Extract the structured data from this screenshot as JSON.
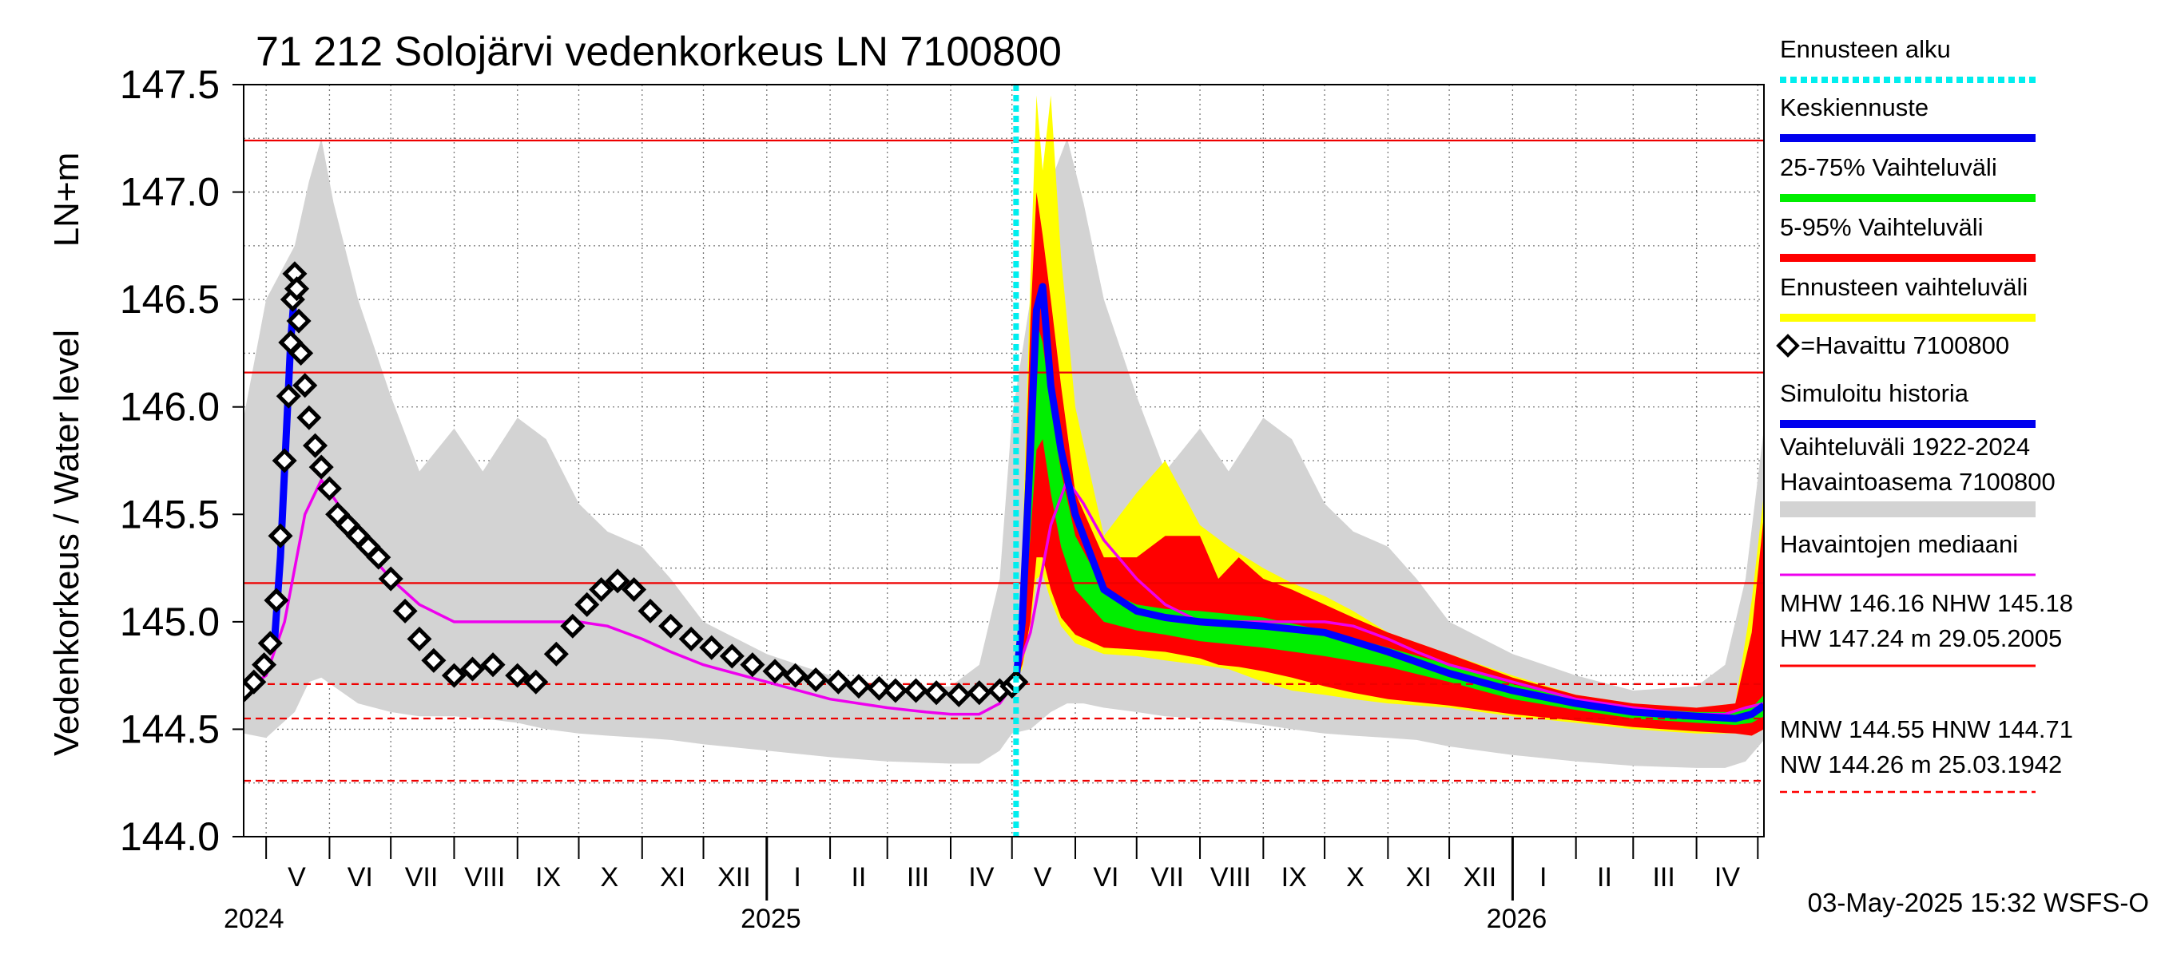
{
  "chart_data": {
    "type": "line",
    "title": "71 212 Solojärvi vedenkorkeus LN 7100800",
    "ylabel_top": "LN+m",
    "ylabel": "Vedenkorkeus / Water level",
    "ylim": [
      144.0,
      147.5
    ],
    "yticks": [
      "147.5",
      "147.0",
      "146.5",
      "146.0",
      "145.5",
      "145.0",
      "144.5",
      "144.0"
    ],
    "xlim": [
      "2024-04-20",
      "2026-05-04"
    ],
    "month_labels": [
      {
        "label": "V",
        "date": "2024-05-16"
      },
      {
        "label": "VI",
        "date": "2024-06-16"
      },
      {
        "label": "VII",
        "date": "2024-07-16"
      },
      {
        "label": "VIII",
        "date": "2024-08-16"
      },
      {
        "label": "IX",
        "date": "2024-09-16"
      },
      {
        "label": "X",
        "date": "2024-10-16"
      },
      {
        "label": "XI",
        "date": "2024-11-16"
      },
      {
        "label": "XII",
        "date": "2024-12-16"
      },
      {
        "label": "I",
        "date": "2025-01-16"
      },
      {
        "label": "II",
        "date": "2025-02-15"
      },
      {
        "label": "III",
        "date": "2025-03-16"
      },
      {
        "label": "IV",
        "date": "2025-04-16"
      },
      {
        "label": "V",
        "date": "2025-05-16"
      },
      {
        "label": "VI",
        "date": "2025-06-16"
      },
      {
        "label": "VII",
        "date": "2025-07-16"
      },
      {
        "label": "VIII",
        "date": "2025-08-16"
      },
      {
        "label": "IX",
        "date": "2025-09-16"
      },
      {
        "label": "X",
        "date": "2025-10-16"
      },
      {
        "label": "XI",
        "date": "2025-11-16"
      },
      {
        "label": "XII",
        "date": "2025-12-16"
      },
      {
        "label": "I",
        "date": "2026-01-16"
      },
      {
        "label": "II",
        "date": "2026-02-15"
      },
      {
        "label": "III",
        "date": "2026-03-16"
      },
      {
        "label": "IV",
        "date": "2026-04-16"
      }
    ],
    "year_labels": [
      {
        "label": "2024",
        "date": "2024-04-25"
      },
      {
        "label": "2025",
        "date": "2025-01-03"
      },
      {
        "label": "2026",
        "date": "2026-01-03"
      }
    ],
    "year_boundaries": [
      "2025-01-01",
      "2026-01-01"
    ],
    "forecast_start": "2025-05-03",
    "reference_lines": [
      {
        "name": "HW",
        "value": 147.24,
        "style": "solid"
      },
      {
        "name": "MHW",
        "value": 146.16,
        "style": "solid"
      },
      {
        "name": "NHW",
        "value": 145.18,
        "style": "solid"
      },
      {
        "name": "HNW",
        "value": 144.71,
        "style": "dashed"
      },
      {
        "name": "MNW",
        "value": 144.55,
        "style": "dashed"
      },
      {
        "name": "NW",
        "value": 144.26,
        "style": "dashed"
      }
    ],
    "series": [
      {
        "name": "Vaihteluväli 1922-2024 Havaintoasema 7100800",
        "kind": "band",
        "color": "#d3d3d3",
        "x": [
          "2024-04-20",
          "2024-05-01",
          "2024-05-15",
          "2024-05-22",
          "2024-05-28",
          "2024-06-03",
          "2024-06-15",
          "2024-07-01",
          "2024-07-15",
          "2024-08-01",
          "2024-08-15",
          "2024-09-01",
          "2024-09-15",
          "2024-10-01",
          "2024-10-15",
          "2024-11-01",
          "2024-11-15",
          "2024-12-01",
          "2025-01-01",
          "2025-02-01",
          "2025-03-01",
          "2025-04-01",
          "2025-04-15",
          "2025-04-25",
          "2025-05-01",
          "2025-05-10",
          "2025-05-20",
          "2025-05-28",
          "2025-06-05",
          "2025-06-15",
          "2025-07-01",
          "2025-07-15",
          "2025-08-01",
          "2025-08-15",
          "2025-09-01",
          "2025-09-15",
          "2025-10-01",
          "2025-10-15",
          "2025-11-01",
          "2025-11-15",
          "2025-12-01",
          "2026-01-01",
          "2026-02-01",
          "2026-03-01",
          "2026-04-01",
          "2026-04-15",
          "2026-04-25",
          "2026-05-04"
        ],
        "upper": [
          145.95,
          146.5,
          146.75,
          147.05,
          147.25,
          146.95,
          146.5,
          146.05,
          145.7,
          145.9,
          145.7,
          145.95,
          145.85,
          145.55,
          145.42,
          145.35,
          145.2,
          145.0,
          144.85,
          144.75,
          144.68,
          144.7,
          144.8,
          145.2,
          145.95,
          146.5,
          147.05,
          147.25,
          146.95,
          146.5,
          146.05,
          145.7,
          145.9,
          145.7,
          145.95,
          145.85,
          145.55,
          145.42,
          145.35,
          145.2,
          145.0,
          144.85,
          144.75,
          144.68,
          144.7,
          144.8,
          145.2,
          145.9
        ],
        "lower": [
          144.48,
          144.46,
          144.58,
          144.72,
          144.74,
          144.7,
          144.62,
          144.58,
          144.56,
          144.56,
          144.55,
          144.53,
          144.5,
          144.48,
          144.47,
          144.46,
          144.45,
          144.43,
          144.4,
          144.37,
          144.35,
          144.34,
          144.34,
          144.4,
          144.48,
          144.5,
          144.58,
          144.62,
          144.62,
          144.6,
          144.58,
          144.56,
          144.55,
          144.54,
          144.52,
          144.5,
          144.48,
          144.47,
          144.46,
          144.45,
          144.42,
          144.38,
          144.35,
          144.33,
          144.32,
          144.32,
          144.35,
          144.45
        ]
      },
      {
        "name": "Ennusteen vaihteluväli",
        "kind": "band",
        "color": "#ffff00",
        "x": [
          "2025-05-03",
          "2025-05-06",
          "2025-05-10",
          "2025-05-13",
          "2025-05-16",
          "2025-05-20",
          "2025-05-25",
          "2025-06-01",
          "2025-06-15",
          "2025-07-01",
          "2025-07-15",
          "2025-08-01",
          "2025-08-15",
          "2025-09-01",
          "2025-09-15",
          "2025-10-01",
          "2025-10-15",
          "2025-11-01",
          "2025-12-01",
          "2026-01-01",
          "2026-02-01",
          "2026-03-01",
          "2026-04-01",
          "2026-04-20",
          "2026-04-28",
          "2026-05-04"
        ],
        "upper": [
          144.75,
          145.3,
          146.6,
          147.45,
          147.1,
          147.45,
          146.7,
          146.0,
          145.4,
          145.6,
          145.75,
          145.45,
          145.35,
          145.25,
          145.18,
          145.12,
          145.05,
          144.95,
          144.85,
          144.75,
          144.66,
          144.62,
          144.6,
          144.62,
          145.1,
          145.6
        ],
        "lower": [
          144.72,
          144.78,
          144.98,
          145.2,
          145.22,
          145.1,
          144.98,
          144.9,
          144.85,
          144.84,
          144.82,
          144.8,
          144.78,
          144.72,
          144.68,
          144.66,
          144.64,
          144.62,
          144.6,
          144.56,
          144.53,
          144.5,
          144.48,
          144.48,
          144.47,
          144.5
        ]
      },
      {
        "name": "5-95% Vaihteluväli",
        "kind": "band",
        "color": "#ff0000",
        "x": [
          "2025-05-03",
          "2025-05-06",
          "2025-05-10",
          "2025-05-13",
          "2025-05-16",
          "2025-05-20",
          "2025-05-25",
          "2025-06-01",
          "2025-06-15",
          "2025-07-01",
          "2025-07-15",
          "2025-08-01",
          "2025-08-10",
          "2025-08-20",
          "2025-09-01",
          "2025-09-15",
          "2025-10-01",
          "2025-10-15",
          "2025-11-01",
          "2025-12-01",
          "2026-01-01",
          "2026-02-01",
          "2026-03-01",
          "2026-04-01",
          "2026-04-20",
          "2026-04-28",
          "2026-05-04"
        ],
        "upper": [
          144.75,
          145.2,
          146.4,
          147.0,
          146.8,
          146.5,
          146.1,
          145.6,
          145.3,
          145.3,
          145.4,
          145.4,
          145.2,
          145.3,
          145.2,
          145.15,
          145.08,
          145.02,
          144.95,
          144.85,
          144.74,
          144.66,
          144.62,
          144.6,
          144.62,
          144.95,
          145.5
        ],
        "lower": [
          144.72,
          144.8,
          145.0,
          145.3,
          145.3,
          145.15,
          145.02,
          144.94,
          144.88,
          144.87,
          144.86,
          144.83,
          144.8,
          144.79,
          144.77,
          144.74,
          144.7,
          144.67,
          144.64,
          144.61,
          144.57,
          144.54,
          144.51,
          144.49,
          144.48,
          144.47,
          144.5
        ]
      },
      {
        "name": "25-75% Vaihteluväli",
        "kind": "band",
        "color": "#00ee00",
        "x": [
          "2025-05-03",
          "2025-05-06",
          "2025-05-10",
          "2025-05-13",
          "2025-05-16",
          "2025-05-20",
          "2025-05-25",
          "2025-06-01",
          "2025-06-15",
          "2025-07-01",
          "2025-07-15",
          "2025-08-01",
          "2025-09-01",
          "2025-10-01",
          "2025-11-01",
          "2025-12-01",
          "2026-01-01",
          "2026-02-01",
          "2026-03-01",
          "2026-04-01",
          "2026-04-20",
          "2026-04-28",
          "2026-05-04"
        ],
        "upper": [
          144.74,
          145.1,
          145.8,
          146.4,
          146.3,
          146.0,
          145.7,
          145.4,
          145.15,
          145.08,
          145.06,
          145.05,
          145.02,
          144.96,
          144.88,
          144.8,
          144.71,
          144.64,
          144.6,
          144.58,
          144.58,
          144.6,
          144.66
        ],
        "lower": [
          144.73,
          144.9,
          145.4,
          145.8,
          145.85,
          145.6,
          145.35,
          145.15,
          145.0,
          144.96,
          144.94,
          144.91,
          144.88,
          144.84,
          144.79,
          144.72,
          144.64,
          144.59,
          144.55,
          144.53,
          144.52,
          144.53,
          144.56
        ]
      },
      {
        "name": "Havaintojen mediaani",
        "kind": "line",
        "color": "#ee00ee",
        "x": [
          "2024-04-20",
          "2024-05-01",
          "2024-05-10",
          "2024-05-20",
          "2024-05-28",
          "2024-06-05",
          "2024-06-15",
          "2024-07-01",
          "2024-07-15",
          "2024-08-01",
          "2024-08-15",
          "2024-09-01",
          "2024-09-15",
          "2024-10-01",
          "2024-10-15",
          "2024-11-01",
          "2024-11-15",
          "2024-12-01",
          "2025-01-01",
          "2025-02-01",
          "2025-03-01",
          "2025-03-20",
          "2025-04-01",
          "2025-04-15",
          "2025-04-25",
          "2025-05-01",
          "2025-05-10",
          "2025-05-20",
          "2025-05-28",
          "2025-06-05",
          "2025-06-15",
          "2025-07-01",
          "2025-07-15",
          "2025-08-01",
          "2025-08-15",
          "2025-09-01",
          "2025-09-15",
          "2025-10-01",
          "2025-10-15",
          "2025-11-01",
          "2025-11-15",
          "2025-12-01",
          "2026-01-01",
          "2026-02-01",
          "2026-03-01",
          "2026-03-20",
          "2026-04-01",
          "2026-04-15",
          "2026-04-25",
          "2026-05-04"
        ],
        "y": [
          144.68,
          144.75,
          145.0,
          145.5,
          145.66,
          145.55,
          145.38,
          145.2,
          145.08,
          145.0,
          145.0,
          145.0,
          145.0,
          145.0,
          144.98,
          144.92,
          144.86,
          144.8,
          144.72,
          144.64,
          144.6,
          144.58,
          144.57,
          144.57,
          144.62,
          144.7,
          144.95,
          145.45,
          145.66,
          145.55,
          145.38,
          145.2,
          145.08,
          145.0,
          145.0,
          145.0,
          145.0,
          145.0,
          144.98,
          144.92,
          144.86,
          144.8,
          144.72,
          144.64,
          144.6,
          144.58,
          144.57,
          144.57,
          144.6,
          144.62
        ]
      },
      {
        "name": "Keskiennuste",
        "kind": "line",
        "color": "#0000ff",
        "x": [
          "2025-05-03",
          "2025-05-06",
          "2025-05-10",
          "2025-05-13",
          "2025-05-16",
          "2025-05-20",
          "2025-05-25",
          "2025-06-01",
          "2025-06-15",
          "2025-07-01",
          "2025-07-15",
          "2025-08-01",
          "2025-09-01",
          "2025-10-01",
          "2025-11-01",
          "2025-12-01",
          "2026-01-01",
          "2026-02-01",
          "2026-03-01",
          "2026-04-01",
          "2026-04-20",
          "2026-04-28",
          "2026-05-04"
        ],
        "y": [
          144.73,
          145.0,
          145.8,
          146.45,
          146.56,
          146.1,
          145.8,
          145.5,
          145.15,
          145.05,
          145.02,
          145.0,
          144.98,
          144.95,
          144.86,
          144.76,
          144.68,
          144.62,
          144.58,
          144.56,
          144.55,
          144.57,
          144.61
        ]
      },
      {
        "name": "Simuloitu historia",
        "kind": "line",
        "color": "#0000ff",
        "x": [
          "2024-05-05",
          "2024-05-08",
          "2024-05-11",
          "2024-05-13",
          "2024-05-15"
        ],
        "y": [
          144.9,
          145.3,
          145.9,
          146.3,
          146.55
        ]
      },
      {
        "name": "=Havaittu 7100800",
        "kind": "markers",
        "color": "#000000",
        "x": [
          "2024-04-20",
          "2024-04-25",
          "2024-04-30",
          "2024-05-03",
          "2024-05-06",
          "2024-05-08",
          "2024-05-10",
          "2024-05-12",
          "2024-05-13",
          "2024-05-14",
          "2024-05-15",
          "2024-05-16",
          "2024-05-17",
          "2024-05-18",
          "2024-05-20",
          "2024-05-22",
          "2024-05-25",
          "2024-05-28",
          "2024-06-01",
          "2024-06-05",
          "2024-06-10",
          "2024-06-15",
          "2024-06-20",
          "2024-06-25",
          "2024-07-01",
          "2024-07-08",
          "2024-07-15",
          "2024-07-22",
          "2024-08-01",
          "2024-08-10",
          "2024-08-20",
          "2024-09-01",
          "2024-09-10",
          "2024-09-20",
          "2024-09-28",
          "2024-10-05",
          "2024-10-12",
          "2024-10-20",
          "2024-10-28",
          "2024-11-05",
          "2024-11-15",
          "2024-11-25",
          "2024-12-05",
          "2024-12-15",
          "2024-12-25",
          "2025-01-05",
          "2025-01-15",
          "2025-01-25",
          "2025-02-05",
          "2025-02-15",
          "2025-02-25",
          "2025-03-05",
          "2025-03-15",
          "2025-03-25",
          "2025-04-05",
          "2025-04-15",
          "2025-04-25",
          "2025-05-01",
          "2025-05-03"
        ],
        "y": [
          144.68,
          144.72,
          144.8,
          144.9,
          145.1,
          145.4,
          145.75,
          146.05,
          146.3,
          146.5,
          146.62,
          146.55,
          146.4,
          146.25,
          146.1,
          145.95,
          145.82,
          145.72,
          145.62,
          145.5,
          145.45,
          145.4,
          145.35,
          145.3,
          145.2,
          145.05,
          144.92,
          144.82,
          144.75,
          144.78,
          144.8,
          144.75,
          144.72,
          144.85,
          144.98,
          145.08,
          145.15,
          145.19,
          145.15,
          145.05,
          144.98,
          144.92,
          144.88,
          144.84,
          144.8,
          144.77,
          144.75,
          144.73,
          144.72,
          144.7,
          144.69,
          144.68,
          144.68,
          144.67,
          144.66,
          144.67,
          144.68,
          144.7,
          144.72
        ]
      }
    ],
    "legend": [
      {
        "label": "Ennusteen alku",
        "color": "#00eeee",
        "style": "dotted"
      },
      {
        "label": "Keskiennuste",
        "color": "#0000ee",
        "style": "line"
      },
      {
        "label": "25-75% Vaihteluväli",
        "color": "#00ee00",
        "style": "line"
      },
      {
        "label": "5-95% Vaihteluväli",
        "color": "#ff0000",
        "style": "line"
      },
      {
        "label": "Ennusteen vaihteluväli",
        "color": "#ffff00",
        "style": "line"
      },
      {
        "label": "=Havaittu 7100800",
        "color": "#000000",
        "style": "marker"
      },
      {
        "label": "Simuloitu historia",
        "color": "#0000ee",
        "style": "line"
      },
      {
        "label": "Vaihteluväli 1922-2024",
        "label2": " Havaintoasema 7100800",
        "color": "#d3d3d3",
        "style": "band"
      },
      {
        "label": "Havaintojen mediaani",
        "color": "#ee00ee",
        "style": "thin"
      },
      {
        "label": "MHW 146.16 NHW 145.18",
        "label2": "HW 147.24 m 29.05.2005",
        "color": "#ff0000",
        "style": "thin"
      },
      {
        "label": "MNW 144.55 HNW 144.71",
        "label2": "NW 144.26 m 25.03.1942",
        "color": "#ff0000",
        "style": "dashed"
      }
    ],
    "footer": "03-May-2025 15:32 WSFS-O"
  }
}
